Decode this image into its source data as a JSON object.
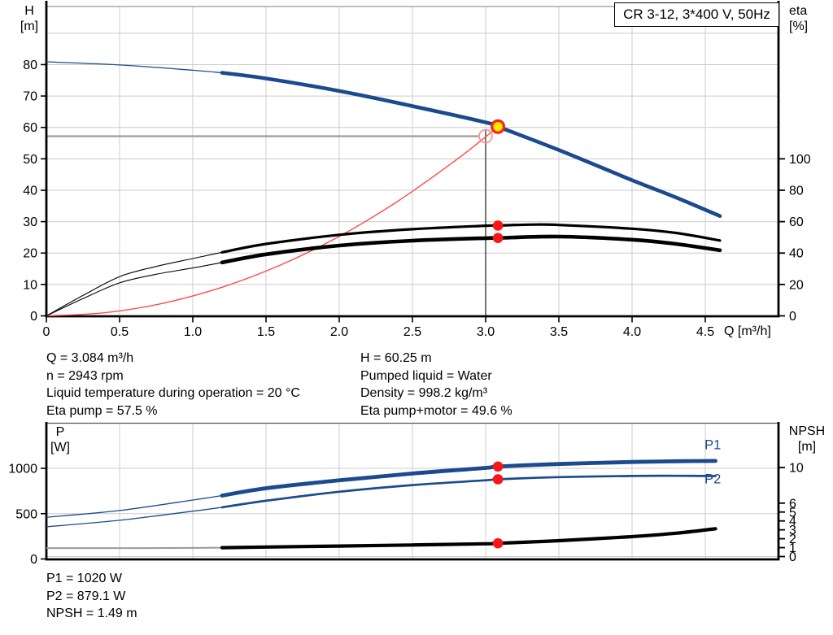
{
  "title_box": {
    "label": "CR 3-12, 3*400 V, 50Hz"
  },
  "colors": {
    "curve_blue": "#1b4b8e",
    "curve_black": "#000000",
    "marker_red": "#fb1515",
    "system_red": "#ff4a4a",
    "request_ring_red": "#ff8d8d",
    "marker_yellow": "#ffe900",
    "grid_gray": "#cccccc",
    "crosshair_h": "#a0a0a0",
    "crosshair_v": "#3d3d3d",
    "npsh_thin_gray": "#999999"
  },
  "info_top": {
    "left": [
      "Q = 3.084 m³/h",
      "n = 2943 rpm",
      "Liquid temperature during operation = 20 °C",
      "Eta pump = 57.5 %"
    ],
    "right": [
      "H = 60.25 m",
      "Pumped liquid = Water",
      "Density = 998.2 kg/m³",
      "Eta pump+motor = 49.6 %"
    ]
  },
  "info_bottom": [
    "P1 = 1020 W",
    "P2 = 879.1 W",
    "NPSH = 1.49 m"
  ],
  "chart_data": [
    {
      "id": "qh",
      "type": "line",
      "x_axis": {
        "label": "Q [m³/h]",
        "range": [
          0,
          5
        ],
        "ticks": [
          {
            "v": 0,
            "label": "0"
          },
          {
            "v": 0.5,
            "label": "0.5"
          },
          {
            "v": 1,
            "label": "1.0"
          },
          {
            "v": 1.5,
            "label": "1.5"
          },
          {
            "v": 2,
            "label": "2.0"
          },
          {
            "v": 2.5,
            "label": "2.5"
          },
          {
            "v": 3,
            "label": "3.0"
          },
          {
            "v": 3.5,
            "label": "3.5"
          },
          {
            "v": 4,
            "label": "4.0"
          },
          {
            "v": 4.5,
            "label": "4.5"
          }
        ],
        "grid": [
          0.5,
          1,
          1.5,
          2,
          2.5,
          3,
          3.5,
          4,
          4.5
        ]
      },
      "left_axis": {
        "label": "H",
        "unit": "[m]",
        "range": [
          0,
          98.5
        ],
        "ticks": [
          {
            "v": 0,
            "label": "0"
          },
          {
            "v": 10,
            "label": "10"
          },
          {
            "v": 20,
            "label": "20"
          },
          {
            "v": 30,
            "label": "30"
          },
          {
            "v": 40,
            "label": "40"
          },
          {
            "v": 50,
            "label": "50"
          },
          {
            "v": 60,
            "label": "60"
          },
          {
            "v": 70,
            "label": "70"
          },
          {
            "v": 80,
            "label": "80"
          }
        ],
        "grid": [
          10,
          20,
          30,
          40,
          50,
          60,
          70,
          80,
          90
        ]
      },
      "right_axis": {
        "label": "eta",
        "unit": "[%]",
        "range": [
          0,
          197
        ],
        "ticks": [
          {
            "v": 0,
            "label": "0"
          },
          {
            "v": 20,
            "label": "20"
          },
          {
            "v": 40,
            "label": "40"
          },
          {
            "v": 60,
            "label": "60"
          },
          {
            "v": 80,
            "label": "80"
          },
          {
            "v": 100,
            "label": "100"
          }
        ],
        "grid": []
      },
      "series": [
        {
          "name": "system-curve",
          "axis": "left",
          "color": "#ff4a4a",
          "thick_from": 99,
          "points": [
            [
              0,
              0
            ],
            [
              0.4,
              1.01
            ],
            [
              0.8,
              4.05
            ],
            [
              1.2,
              9.12
            ],
            [
              1.6,
              16.2
            ],
            [
              2.0,
              25.3
            ],
            [
              2.4,
              36.5
            ],
            [
              2.8,
              49.7
            ],
            [
              3.0,
              57.0
            ],
            [
              3.084,
              60.25
            ]
          ]
        },
        {
          "name": "eta-pump",
          "axis": "right",
          "color": "#000000",
          "thick_from": 1.2,
          "points": [
            [
              0,
              0
            ],
            [
              0.25,
              13
            ],
            [
              0.5,
              25
            ],
            [
              0.75,
              31.5
            ],
            [
              1.0,
              36.5
            ],
            [
              1.2,
              40.5
            ],
            [
              1.5,
              45.8
            ],
            [
              2.0,
              51.6
            ],
            [
              2.5,
              55.2
            ],
            [
              3.0,
              57.4
            ],
            [
              3.084,
              57.5
            ],
            [
              3.3,
              58.1
            ],
            [
              3.5,
              57.9
            ],
            [
              4.0,
              55.5
            ],
            [
              4.3,
              52.8
            ],
            [
              4.6,
              48.0
            ]
          ]
        },
        {
          "name": "eta-pump-motor",
          "axis": "right",
          "color": "#000000",
          "thick_from": 1.2,
          "points": [
            [
              0,
              0
            ],
            [
              0.25,
              11
            ],
            [
              0.5,
              21
            ],
            [
              0.75,
              26.5
            ],
            [
              1.0,
              30.5
            ],
            [
              1.2,
              34.0
            ],
            [
              1.5,
              39.2
            ],
            [
              2.0,
              44.8
            ],
            [
              2.5,
              47.9
            ],
            [
              3.0,
              49.5
            ],
            [
              3.084,
              49.6
            ],
            [
              3.5,
              50.5
            ],
            [
              4.0,
              48.5
            ],
            [
              4.3,
              45.8
            ],
            [
              4.6,
              41.8
            ]
          ]
        },
        {
          "name": "pump-curve",
          "axis": "left",
          "color": "#1b4b8e",
          "thick_from": 1.2,
          "points": [
            [
              0,
              80.9
            ],
            [
              0.5,
              79.9
            ],
            [
              1.0,
              78.2
            ],
            [
              1.2,
              77.4
            ],
            [
              1.5,
              75.6
            ],
            [
              2.0,
              71.6
            ],
            [
              2.5,
              66.8
            ],
            [
              3.0,
              61.6
            ],
            [
              3.084,
              60.25
            ],
            [
              3.5,
              52.8
            ],
            [
              4.0,
              43.2
            ],
            [
              4.3,
              37.7
            ],
            [
              4.6,
              31.8
            ]
          ]
        }
      ],
      "crosshair": {
        "q": 3.0,
        "v": 57.2,
        "axis": "left"
      },
      "markers": [
        {
          "type": "request-point",
          "q": 3.0,
          "v": 57.2,
          "axis": "left"
        },
        {
          "type": "duty-point",
          "q": 3.084,
          "v": 60.25,
          "axis": "left"
        },
        {
          "type": "dot",
          "q": 3.084,
          "v": 57.5,
          "axis": "right"
        },
        {
          "type": "dot",
          "q": 3.084,
          "v": 49.6,
          "axis": "right"
        }
      ],
      "annotations": []
    },
    {
      "id": "pn",
      "type": "line",
      "x_axis": {
        "label": "",
        "range": [
          0,
          5
        ],
        "ticks": [],
        "grid": [
          0.5,
          1,
          1.5,
          2,
          2.5,
          3,
          3.5,
          4,
          4.5
        ]
      },
      "left_axis": {
        "label": "P",
        "unit": "[W]",
        "range": [
          0,
          1498
        ],
        "ticks": [
          {
            "v": 0,
            "label": "0"
          },
          {
            "v": 500,
            "label": "500"
          },
          {
            "v": 1000,
            "label": "1000"
          }
        ],
        "grid": [
          500,
          1000
        ]
      },
      "right_axis": {
        "label": "NPSH",
        "unit": "[m]",
        "range": [
          0,
          14.98
        ],
        "ticks": [
          {
            "v": 0,
            "label": "0"
          },
          {
            "v": 1,
            "label": "1"
          },
          {
            "v": 2,
            "label": "2"
          },
          {
            "v": 3,
            "label": "3"
          },
          {
            "v": 4,
            "label": "4"
          },
          {
            "v": 5,
            "label": "5"
          },
          {
            "v": 6,
            "label": "6"
          },
          {
            "v": 10,
            "label": "10"
          }
        ],
        "grid": [
          0
        ]
      },
      "series": [
        {
          "name": "p1",
          "axis": "left",
          "color": "#1b4b8e",
          "thick_from": 1.2,
          "points": [
            [
              0,
              460
            ],
            [
              0.5,
              535
            ],
            [
              1.0,
              650
            ],
            [
              1.2,
              700
            ],
            [
              1.5,
              780
            ],
            [
              2.0,
              868
            ],
            [
              2.5,
              943
            ],
            [
              3.0,
              1005
            ],
            [
              3.084,
              1020
            ],
            [
              3.5,
              1048
            ],
            [
              4.0,
              1070
            ],
            [
              4.3,
              1078
            ],
            [
              4.57,
              1082
            ]
          ]
        },
        {
          "name": "p2",
          "axis": "left",
          "color": "#1b4b8e",
          "thick_from": 1.2,
          "points": [
            [
              0,
              355
            ],
            [
              0.5,
              427
            ],
            [
              1.0,
              527
            ],
            [
              1.2,
              570
            ],
            [
              1.5,
              642
            ],
            [
              2.0,
              742
            ],
            [
              2.5,
              815
            ],
            [
              3.0,
              868
            ],
            [
              3.084,
              879.1
            ],
            [
              3.5,
              903
            ],
            [
              4.0,
              916
            ],
            [
              4.3,
              918
            ],
            [
              4.57,
              915
            ]
          ]
        },
        {
          "name": "npsh",
          "axis": "right",
          "color": "#000000",
          "thin_color": "#999999",
          "thick_from": 1.2,
          "points": [
            [
              0,
              0.95
            ],
            [
              0.5,
              0.95
            ],
            [
              1.0,
              0.97
            ],
            [
              1.2,
              1.0
            ],
            [
              1.5,
              1.07
            ],
            [
              2.0,
              1.18
            ],
            [
              2.5,
              1.3
            ],
            [
              3.0,
              1.43
            ],
            [
              3.084,
              1.49
            ],
            [
              3.5,
              1.78
            ],
            [
              4.0,
              2.24
            ],
            [
              4.3,
              2.62
            ],
            [
              4.57,
              3.12
            ]
          ]
        }
      ],
      "crosshair": null,
      "markers": [
        {
          "type": "dot",
          "q": 3.084,
          "v": 1020,
          "axis": "left"
        },
        {
          "type": "dot",
          "q": 3.084,
          "v": 879.1,
          "axis": "left"
        },
        {
          "type": "dot",
          "q": 3.084,
          "v": 1.49,
          "axis": "right"
        }
      ],
      "annotations": [
        {
          "text": "P1",
          "q": 4.495,
          "v": 1213,
          "axis": "left",
          "color": "#1b4b8e"
        },
        {
          "text": "P2",
          "q": 4.495,
          "v": 836,
          "axis": "left",
          "color": "#1b4b8e"
        }
      ]
    }
  ]
}
